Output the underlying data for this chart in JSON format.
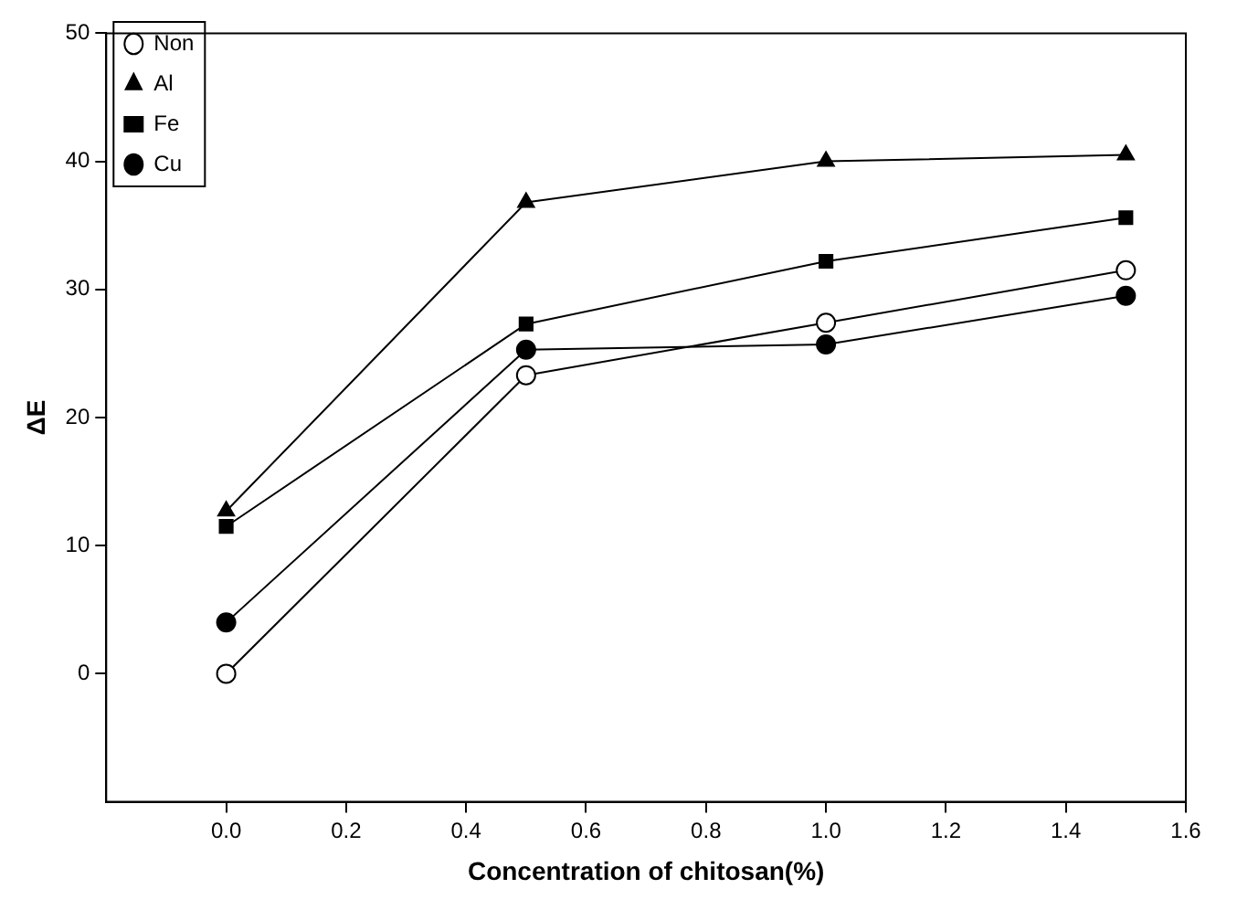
{
  "chart_data": {
    "type": "line",
    "xlabel": "Concentration of chitosan(%)",
    "ylabel": "ΔE",
    "x": [
      0,
      0.5,
      1.0,
      1.5
    ],
    "series": [
      {
        "name": "Non",
        "color": "#ffffff",
        "marker": "circle",
        "values": [
          0,
          23.3,
          27.4,
          31.5
        ]
      },
      {
        "name": "Al",
        "color": "#000000",
        "marker": "triangle",
        "values": [
          12.7,
          36.8,
          40,
          40.5
        ]
      },
      {
        "name": "Fe",
        "color": "#000000",
        "marker": "square",
        "values": [
          11.5,
          27.3,
          32.2,
          35.6
        ]
      },
      {
        "name": "Cu",
        "color": "#000000",
        "marker": "circle",
        "values": [
          4,
          25.3,
          25.7,
          29.5
        ]
      }
    ],
    "xlim": [
      -0.2,
      1.6
    ],
    "xticks": [
      {
        "value": 0,
        "label": "0.0"
      },
      {
        "value": 0.2,
        "label": "0.2"
      },
      {
        "value": 0.4,
        "label": "0.4"
      },
      {
        "value": 0.6,
        "label": "0.6"
      },
      {
        "value": 0.8,
        "label": "0.8"
      },
      {
        "value": 1,
        "label": "1.0"
      },
      {
        "value": 1.2,
        "label": "1.2"
      },
      {
        "value": 1.4,
        "label": "1.4"
      },
      {
        "value": 1.6,
        "label": "1.6"
      }
    ],
    "ylim": [
      -10,
      50
    ],
    "yticks": [
      0,
      10,
      20,
      30,
      40,
      50
    ],
    "grid": false,
    "legend": "top left",
    "line_style": "solid"
  }
}
